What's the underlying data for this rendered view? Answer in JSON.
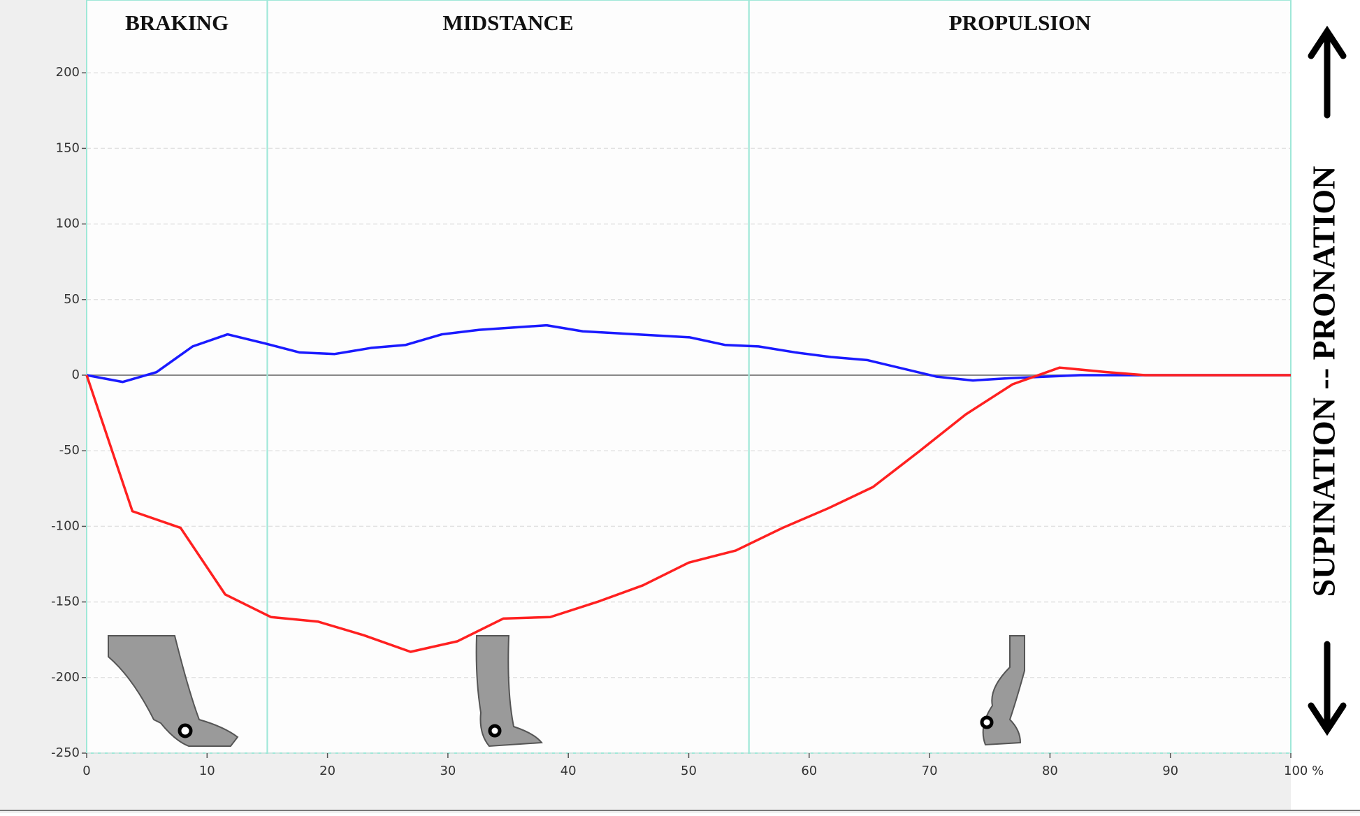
{
  "chart_data": {
    "type": "line",
    "side_label": "SUPINATION -- PRONATION",
    "phases": [
      {
        "name": "BRAKING",
        "start": 0,
        "end": 15
      },
      {
        "name": "MIDSTANCE",
        "start": 15,
        "end": 55
      },
      {
        "name": "PROPULSION",
        "start": 55,
        "end": 100
      }
    ],
    "series": [
      {
        "color": "#1a1aff",
        "x": [
          0,
          3,
          5.8,
          8.8,
          11.7,
          14.8,
          17.7,
          20.6,
          23.6,
          26.5,
          29.5,
          32.6,
          38.2,
          41.2,
          50.1,
          53,
          55.8,
          58.9,
          61.8,
          64.8,
          70.6,
          73.6,
          76.6,
          82.5,
          88.3,
          100
        ],
        "values": [
          0,
          -4.5,
          2,
          19,
          27,
          21,
          15,
          14,
          18,
          20,
          27,
          30,
          33,
          29,
          25,
          20,
          19,
          15,
          12,
          10,
          -1,
          -3.5,
          -2,
          0,
          0,
          0
        ]
      },
      {
        "color": "#ff2020",
        "x": [
          0,
          3.8,
          7.8,
          11.5,
          15.3,
          19.2,
          23,
          26.9,
          30.8,
          34.6,
          38.5,
          42.4,
          46.2,
          50,
          53.9,
          57.8,
          61.6,
          65.3,
          69.2,
          73,
          76.9,
          80.8,
          84.7,
          87.9,
          100
        ],
        "values": [
          0,
          -90,
          -101,
          -145,
          -160,
          -163,
          -172,
          -183,
          -176,
          -161,
          -160,
          -150,
          -139,
          -124,
          -116,
          -101,
          -88,
          -74,
          -50,
          -26,
          -6,
          5,
          2,
          0,
          0
        ]
      }
    ],
    "xlim": [
      0,
      100
    ],
    "xticks": [
      0,
      10,
      20,
      30,
      40,
      50,
      60,
      70,
      80,
      90,
      {
        "value": 100,
        "label": "100 %"
      }
    ],
    "ylim": [
      -250,
      250
    ],
    "yticks": [
      -250,
      -200,
      -150,
      -100,
      -50,
      0,
      50,
      100,
      150,
      200
    ],
    "grid": true
  }
}
